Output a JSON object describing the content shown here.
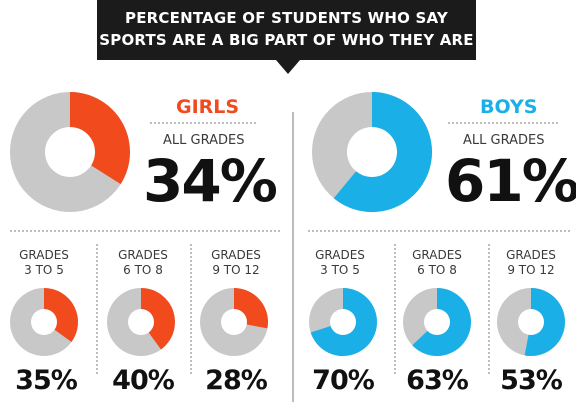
{
  "chart_data": {
    "type": "pie",
    "title_lines": [
      "PERCENTAGE OF STUDENTS WHO SAY",
      "SPORTS ARE A BIG PART OF WHO THEY ARE"
    ],
    "colors": {
      "girls": "#f04a1d",
      "boys": "#1aafe6",
      "remainder": "#c8c8c8"
    },
    "groups": [
      {
        "name": "GIRLS",
        "overall": {
          "label": "ALL GRADES",
          "value": 34,
          "display": "34%"
        },
        "grades": [
          {
            "label_line1": "GRADES",
            "label_line2": "3 TO 5",
            "value": 35,
            "display": "35%"
          },
          {
            "label_line1": "GRADES",
            "label_line2": "6 TO 8",
            "value": 40,
            "display": "40%"
          },
          {
            "label_line1": "GRADES",
            "label_line2": "9 TO 12",
            "value": 28,
            "display": "28%"
          }
        ]
      },
      {
        "name": "BOYS",
        "overall": {
          "label": "ALL GRADES",
          "value": 61,
          "display": "61%"
        },
        "grades": [
          {
            "label_line1": "GRADES",
            "label_line2": "3 TO 5",
            "value": 70,
            "display": "70%"
          },
          {
            "label_line1": "GRADES",
            "label_line2": "6 TO 8",
            "value": 63,
            "display": "63%"
          },
          {
            "label_line1": "GRADES",
            "label_line2": "9 TO 12",
            "value": 53,
            "display": "53%"
          }
        ]
      }
    ]
  }
}
